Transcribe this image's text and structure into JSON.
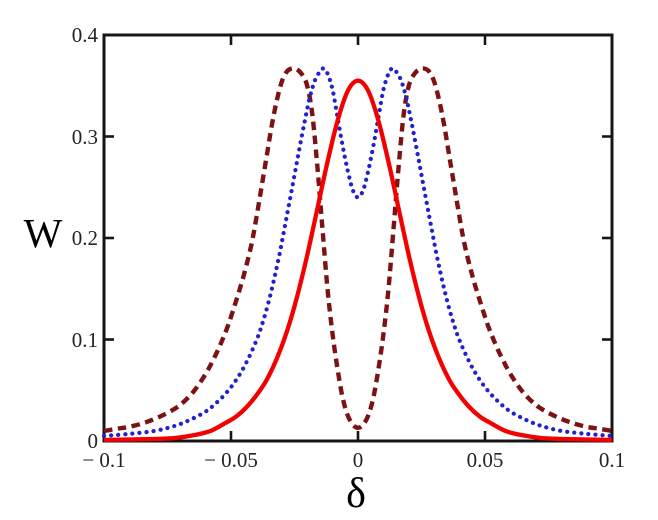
{
  "figure": {
    "background": "#ffffff",
    "frame_color": "#161616",
    "tick_color": "#161616",
    "tick_label_color": "#23232b"
  },
  "axes": {
    "x_ticks": [
      {
        "v": -0.1,
        "label": "− 0.1",
        "mark": false
      },
      {
        "v": -0.05,
        "label": "− 0.05",
        "mark": true
      },
      {
        "v": 0,
        "label": "0",
        "mark": true
      },
      {
        "v": 0.05,
        "label": "0.05",
        "mark": true
      },
      {
        "v": 0.1,
        "label": "0.1",
        "mark": false
      }
    ],
    "y_ticks": [
      {
        "v": 0,
        "label": "0",
        "mark": false
      },
      {
        "v": 0.1,
        "label": "0.1",
        "mark": true
      },
      {
        "v": 0.2,
        "label": "0.2",
        "mark": true
      },
      {
        "v": 0.3,
        "label": "0.3",
        "mark": true
      },
      {
        "v": 0.4,
        "label": "0.4",
        "mark": false
      }
    ]
  },
  "chart_data": {
    "type": "line",
    "title": "",
    "xlabel": "δ",
    "ylabel": "W",
    "xlim": [
      -0.1,
      0.1
    ],
    "ylim": [
      0,
      0.4
    ],
    "grid": false,
    "legend": "none",
    "series": [
      {
        "name": "dashed-double-peak",
        "style": "dashed",
        "color": "#7d1214",
        "width": 4.4,
        "peaks": {
          "x": [
            -0.026,
            0.026
          ],
          "W": 0.367,
          "center_dip": 0.013
        },
        "points": [
          [
            -0.1,
            0.01
          ],
          [
            -0.095,
            0.012
          ],
          [
            -0.09,
            0.014
          ],
          [
            -0.084,
            0.018
          ],
          [
            -0.078,
            0.024
          ],
          [
            -0.072,
            0.032
          ],
          [
            -0.068,
            0.04
          ],
          [
            -0.064,
            0.051
          ],
          [
            -0.06,
            0.066
          ],
          [
            -0.057,
            0.08
          ],
          [
            -0.054,
            0.096
          ],
          [
            -0.051,
            0.115
          ],
          [
            -0.048,
            0.138
          ],
          [
            -0.045,
            0.163
          ],
          [
            -0.042,
            0.193
          ],
          [
            -0.04,
            0.22
          ],
          [
            -0.038,
            0.25
          ],
          [
            -0.036,
            0.28
          ],
          [
            -0.034,
            0.31
          ],
          [
            -0.032,
            0.335
          ],
          [
            -0.03,
            0.354
          ],
          [
            -0.028,
            0.364
          ],
          [
            -0.026,
            0.367
          ],
          [
            -0.024,
            0.366
          ],
          [
            -0.022,
            0.361
          ],
          [
            -0.02,
            0.35
          ],
          [
            -0.018,
            0.322
          ],
          [
            -0.016,
            0.27
          ],
          [
            -0.014,
            0.21
          ],
          [
            -0.012,
            0.15
          ],
          [
            -0.01,
            0.105
          ],
          [
            -0.008,
            0.07
          ],
          [
            -0.006,
            0.042
          ],
          [
            -0.004,
            0.025
          ],
          [
            -0.002,
            0.016
          ],
          [
            0.0,
            0.013
          ],
          [
            0.002,
            0.016
          ],
          [
            0.004,
            0.025
          ],
          [
            0.006,
            0.042
          ],
          [
            0.008,
            0.07
          ],
          [
            0.01,
            0.105
          ],
          [
            0.012,
            0.15
          ],
          [
            0.014,
            0.21
          ],
          [
            0.016,
            0.27
          ],
          [
            0.018,
            0.322
          ],
          [
            0.02,
            0.35
          ],
          [
            0.022,
            0.361
          ],
          [
            0.024,
            0.366
          ],
          [
            0.026,
            0.367
          ],
          [
            0.028,
            0.364
          ],
          [
            0.03,
            0.354
          ],
          [
            0.032,
            0.335
          ],
          [
            0.034,
            0.31
          ],
          [
            0.036,
            0.28
          ],
          [
            0.038,
            0.25
          ],
          [
            0.04,
            0.22
          ],
          [
            0.042,
            0.193
          ],
          [
            0.045,
            0.163
          ],
          [
            0.048,
            0.138
          ],
          [
            0.051,
            0.115
          ],
          [
            0.054,
            0.096
          ],
          [
            0.057,
            0.08
          ],
          [
            0.06,
            0.066
          ],
          [
            0.064,
            0.051
          ],
          [
            0.068,
            0.04
          ],
          [
            0.072,
            0.032
          ],
          [
            0.078,
            0.024
          ],
          [
            0.084,
            0.018
          ],
          [
            0.09,
            0.014
          ],
          [
            0.095,
            0.012
          ],
          [
            0.1,
            0.01
          ]
        ]
      },
      {
        "name": "dotted-double-peak",
        "style": "dotted",
        "color": "#2222cc",
        "width": 4.2,
        "peaks": {
          "x": [
            -0.0135,
            0.0135
          ],
          "W": 0.367,
          "center_dip": 0.24
        },
        "points": [
          [
            -0.1,
            0.005
          ],
          [
            -0.09,
            0.007
          ],
          [
            -0.08,
            0.01
          ],
          [
            -0.072,
            0.015
          ],
          [
            -0.066,
            0.021
          ],
          [
            -0.06,
            0.029
          ],
          [
            -0.056,
            0.037
          ],
          [
            -0.052,
            0.047
          ],
          [
            -0.048,
            0.06
          ],
          [
            -0.044,
            0.077
          ],
          [
            -0.04,
            0.099
          ],
          [
            -0.037,
            0.121
          ],
          [
            -0.034,
            0.149
          ],
          [
            -0.031,
            0.183
          ],
          [
            -0.028,
            0.222
          ],
          [
            -0.025,
            0.262
          ],
          [
            -0.023,
            0.289
          ],
          [
            -0.021,
            0.315
          ],
          [
            -0.019,
            0.338
          ],
          [
            -0.017,
            0.355
          ],
          [
            -0.015,
            0.364
          ],
          [
            -0.0135,
            0.367
          ],
          [
            -0.012,
            0.362
          ],
          [
            -0.01,
            0.346
          ],
          [
            -0.008,
            0.318
          ],
          [
            -0.006,
            0.29
          ],
          [
            -0.004,
            0.266
          ],
          [
            -0.002,
            0.247
          ],
          [
            0.0,
            0.24
          ],
          [
            0.002,
            0.247
          ],
          [
            0.004,
            0.266
          ],
          [
            0.006,
            0.29
          ],
          [
            0.008,
            0.318
          ],
          [
            0.01,
            0.346
          ],
          [
            0.012,
            0.362
          ],
          [
            0.0135,
            0.367
          ],
          [
            0.015,
            0.364
          ],
          [
            0.017,
            0.355
          ],
          [
            0.019,
            0.338
          ],
          [
            0.021,
            0.315
          ],
          [
            0.023,
            0.289
          ],
          [
            0.025,
            0.262
          ],
          [
            0.028,
            0.222
          ],
          [
            0.031,
            0.183
          ],
          [
            0.034,
            0.149
          ],
          [
            0.037,
            0.121
          ],
          [
            0.04,
            0.099
          ],
          [
            0.044,
            0.077
          ],
          [
            0.048,
            0.06
          ],
          [
            0.052,
            0.047
          ],
          [
            0.056,
            0.037
          ],
          [
            0.06,
            0.029
          ],
          [
            0.066,
            0.021
          ],
          [
            0.072,
            0.015
          ],
          [
            0.08,
            0.01
          ],
          [
            0.09,
            0.007
          ],
          [
            0.1,
            0.005
          ]
        ]
      },
      {
        "name": "solid-single-peak",
        "style": "solid",
        "color": "#f30000",
        "width": 4.3,
        "peaks": {
          "x": [
            0
          ],
          "W": 0.355
        },
        "points": [
          [
            -0.1,
            0.001
          ],
          [
            -0.09,
            0.0015
          ],
          [
            -0.08,
            0.002
          ],
          [
            -0.072,
            0.003
          ],
          [
            -0.064,
            0.006
          ],
          [
            -0.058,
            0.01
          ],
          [
            -0.052,
            0.018
          ],
          [
            -0.048,
            0.024
          ],
          [
            -0.044,
            0.033
          ],
          [
            -0.04,
            0.045
          ],
          [
            -0.036,
            0.06
          ],
          [
            -0.032,
            0.081
          ],
          [
            -0.028,
            0.108
          ],
          [
            -0.024,
            0.142
          ],
          [
            -0.02,
            0.183
          ],
          [
            -0.016,
            0.229
          ],
          [
            -0.012,
            0.275
          ],
          [
            -0.008,
            0.316
          ],
          [
            -0.004,
            0.345
          ],
          [
            0.0,
            0.355
          ],
          [
            0.004,
            0.345
          ],
          [
            0.008,
            0.316
          ],
          [
            0.012,
            0.275
          ],
          [
            0.016,
            0.229
          ],
          [
            0.02,
            0.183
          ],
          [
            0.024,
            0.142
          ],
          [
            0.028,
            0.108
          ],
          [
            0.032,
            0.081
          ],
          [
            0.036,
            0.06
          ],
          [
            0.04,
            0.045
          ],
          [
            0.044,
            0.033
          ],
          [
            0.048,
            0.024
          ],
          [
            0.052,
            0.018
          ],
          [
            0.058,
            0.01
          ],
          [
            0.064,
            0.006
          ],
          [
            0.072,
            0.003
          ],
          [
            0.08,
            0.002
          ],
          [
            0.09,
            0.0015
          ],
          [
            0.1,
            0.001
          ]
        ]
      }
    ]
  }
}
